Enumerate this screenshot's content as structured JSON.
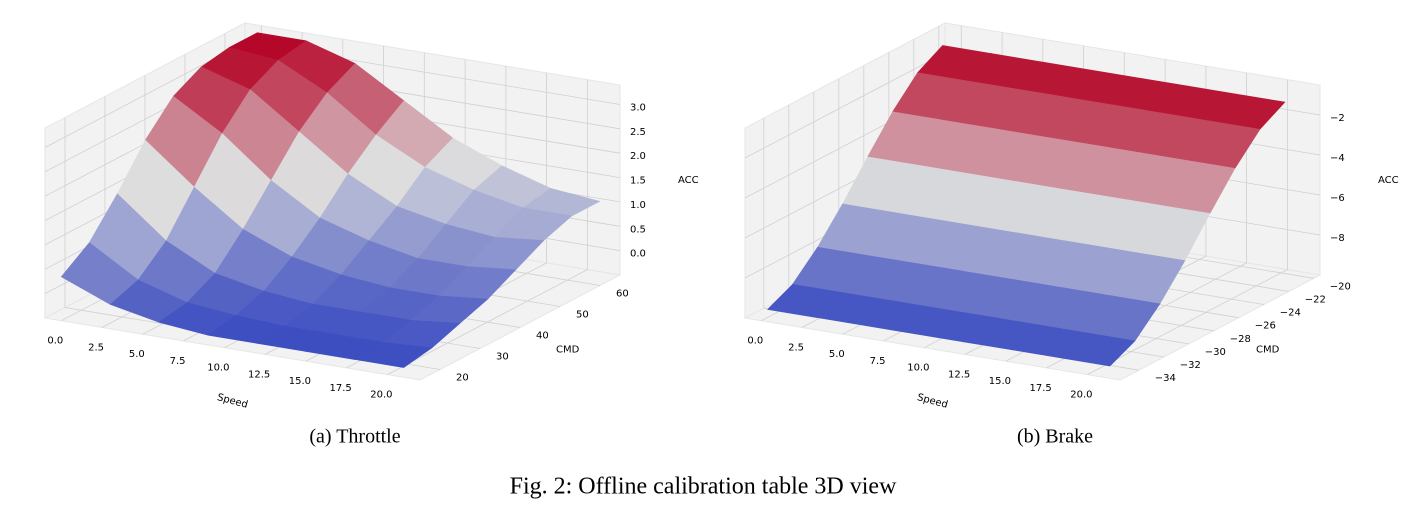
{
  "caption": "Fig. 2: Offline calibration table 3D view",
  "chart_data": [
    {
      "type": "surface",
      "title": "(a) Throttle",
      "colormap": "coolwarm",
      "xlabel": "Speed",
      "ylabel": "CMD",
      "zlabel": "ACC",
      "x": [
        0,
        3,
        6,
        9,
        12,
        15,
        18,
        21
      ],
      "y": [
        15,
        22,
        29,
        36,
        43,
        50,
        57,
        64
      ],
      "z": [
        [
          0.4,
          0.0,
          -0.2,
          -0.3,
          -0.3,
          -0.3,
          -0.3,
          -0.3
        ],
        [
          0.8,
          0.2,
          -0.1,
          -0.2,
          -0.25,
          -0.25,
          -0.25,
          -0.2
        ],
        [
          1.5,
          0.7,
          0.2,
          0.0,
          -0.1,
          -0.1,
          -0.1,
          0.0
        ],
        [
          2.3,
          1.5,
          0.8,
          0.4,
          0.2,
          0.1,
          0.1,
          0.2
        ],
        [
          2.9,
          2.3,
          1.5,
          0.9,
          0.6,
          0.4,
          0.4,
          0.5
        ],
        [
          3.2,
          2.9,
          2.2,
          1.5,
          1.0,
          0.8,
          0.7,
          0.8
        ],
        [
          3.3,
          3.2,
          2.7,
          2.0,
          1.5,
          1.2,
          1.0,
          1.0
        ],
        [
          3.3,
          3.3,
          3.0,
          2.4,
          1.8,
          1.4,
          1.1,
          1.0
        ]
      ],
      "xlim": [
        -1,
        22
      ],
      "ylim": [
        15,
        65
      ],
      "zlim": [
        -0.5,
        3.4
      ],
      "xticks": [
        {
          "value": 0,
          "label": "0.0"
        },
        {
          "value": 2.5,
          "label": "2.5"
        },
        {
          "value": 5,
          "label": "5.0"
        },
        {
          "value": 7.5,
          "label": "7.5"
        },
        {
          "value": 10,
          "label": "10.0"
        },
        {
          "value": 12.5,
          "label": "12.5"
        },
        {
          "value": 15,
          "label": "15.0"
        },
        {
          "value": 17.5,
          "label": "17.5"
        },
        {
          "value": 20,
          "label": "20.0"
        }
      ],
      "yticks": [
        20,
        30,
        40,
        50,
        60
      ],
      "zticks": [
        {
          "value": 0,
          "label": "0.0"
        },
        {
          "value": 0.5,
          "label": "0.5"
        },
        {
          "value": 1,
          "label": "1.0"
        },
        {
          "value": 1.5,
          "label": "1.5"
        },
        {
          "value": 2,
          "label": "2.0"
        },
        {
          "value": 2.5,
          "label": "2.5"
        },
        {
          "value": 3,
          "label": "3.0"
        }
      ]
    },
    {
      "type": "surface",
      "title": "(b) Brake",
      "colormap": "coolwarm",
      "xlabel": "Speed",
      "ylabel": "CMD",
      "zlabel": "ACC",
      "x": [
        0,
        3,
        6,
        9,
        12,
        15,
        18,
        21
      ],
      "y": [
        -35,
        -33,
        -31,
        -29,
        -27,
        -25,
        -23,
        -21
      ],
      "z": [
        [
          -9.6,
          -9.6,
          -9.6,
          -9.6,
          -9.6,
          -9.6,
          -9.6,
          -9.6
        ],
        [
          -9.0,
          -9.0,
          -9.0,
          -9.0,
          -9.0,
          -9.0,
          -9.0,
          -9.0
        ],
        [
          -7.8,
          -7.8,
          -7.8,
          -7.8,
          -7.8,
          -7.8,
          -7.8,
          -7.8
        ],
        [
          -6.3,
          -6.3,
          -6.3,
          -6.3,
          -6.3,
          -6.3,
          -6.3,
          -6.3
        ],
        [
          -4.6,
          -4.6,
          -4.6,
          -4.6,
          -4.6,
          -4.6,
          -4.6,
          -4.6
        ],
        [
          -3.0,
          -3.0,
          -3.0,
          -3.0,
          -3.0,
          -3.0,
          -3.0,
          -3.0
        ],
        [
          -1.7,
          -1.7,
          -1.7,
          -1.7,
          -1.7,
          -1.7,
          -1.7,
          -1.7
        ],
        [
          -1.0,
          -1.0,
          -1.0,
          -1.0,
          -1.0,
          -1.0,
          -1.0,
          -1.0
        ]
      ],
      "xlim": [
        -1,
        22
      ],
      "ylim": [
        -35.5,
        -19.5
      ],
      "zlim": [
        -10,
        -0.5
      ],
      "xticks": [
        {
          "value": 0,
          "label": "0.0"
        },
        {
          "value": 2.5,
          "label": "2.5"
        },
        {
          "value": 5,
          "label": "5.0"
        },
        {
          "value": 7.5,
          "label": "7.5"
        },
        {
          "value": 10,
          "label": "10.0"
        },
        {
          "value": 12.5,
          "label": "12.5"
        },
        {
          "value": 15,
          "label": "15.0"
        },
        {
          "value": 17.5,
          "label": "17.5"
        },
        {
          "value": 20,
          "label": "20.0"
        }
      ],
      "yticks": [
        {
          "value": -34,
          "label": "−34"
        },
        {
          "value": -32,
          "label": "−32"
        },
        {
          "value": -30,
          "label": "−30"
        },
        {
          "value": -28,
          "label": "−28"
        },
        {
          "value": -26,
          "label": "−26"
        },
        {
          "value": -24,
          "label": "−24"
        },
        {
          "value": -22,
          "label": "−22"
        },
        {
          "value": -20,
          "label": "−20"
        }
      ],
      "zticks": [
        {
          "value": -8,
          "label": "−8"
        },
        {
          "value": -6,
          "label": "−6"
        },
        {
          "value": -4,
          "label": "−4"
        },
        {
          "value": -2,
          "label": "−2"
        }
      ]
    }
  ]
}
